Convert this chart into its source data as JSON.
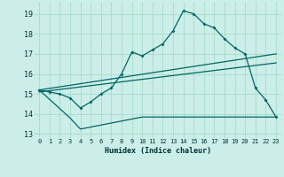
{
  "xlabel": "Humidex (Indice chaleur)",
  "background_color": "#cceee8",
  "grid_color": "#aaddcc",
  "line_color": "#006666",
  "xlim": [
    -0.5,
    23.5
  ],
  "ylim": [
    12.8,
    19.6
  ],
  "yticks": [
    13,
    14,
    15,
    16,
    17,
    18,
    19
  ],
  "xticks": [
    0,
    1,
    2,
    3,
    4,
    5,
    6,
    7,
    8,
    9,
    10,
    11,
    12,
    13,
    14,
    15,
    16,
    17,
    18,
    19,
    20,
    21,
    22,
    23
  ],
  "line1_x": [
    0,
    1,
    2,
    3,
    4,
    5,
    6,
    7,
    8,
    9,
    10,
    11,
    12,
    13,
    14,
    15,
    16,
    17,
    18,
    19,
    20,
    21,
    22,
    23
  ],
  "line1_y": [
    15.2,
    15.1,
    15.0,
    14.8,
    14.3,
    14.6,
    15.0,
    15.3,
    16.0,
    17.1,
    16.9,
    17.2,
    17.5,
    18.15,
    19.15,
    19.0,
    18.5,
    18.3,
    17.75,
    17.3,
    17.0,
    15.3,
    14.7,
    13.85
  ],
  "line2_x": [
    0,
    3,
    4,
    10,
    20,
    23
  ],
  "line2_y": [
    15.2,
    13.8,
    13.25,
    13.85,
    13.85,
    13.85
  ],
  "line3_x": [
    0,
    23
  ],
  "line3_y": [
    15.2,
    17.0
  ],
  "line4_x": [
    0,
    23
  ],
  "line4_y": [
    15.1,
    16.55
  ]
}
